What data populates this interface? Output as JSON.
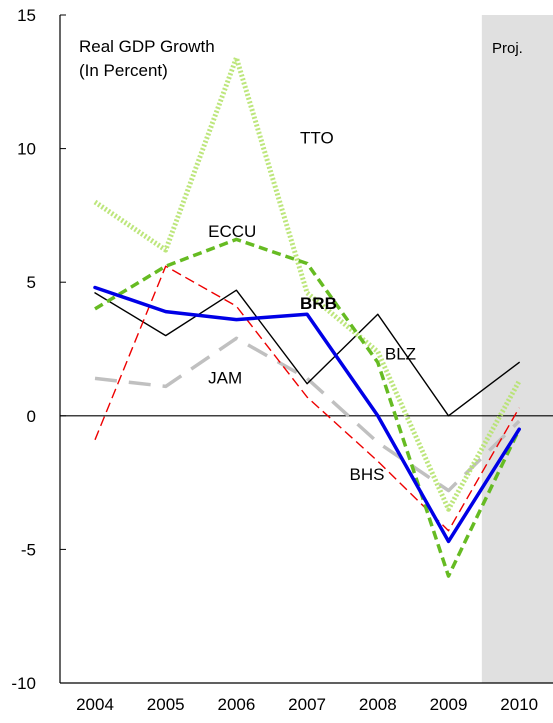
{
  "chart_data": {
    "type": "line",
    "title": "Real GDP Growth",
    "subtitle": "(In Percent)",
    "projection_label": "Proj.",
    "categories": [
      "2004",
      "2005",
      "2006",
      "2007",
      "2008",
      "2009",
      "2010"
    ],
    "ylim": [
      -10,
      15
    ],
    "yticks": [
      "-10",
      "-5",
      "0",
      "5",
      "10",
      "15"
    ],
    "projection_start_index": 5.5,
    "grid": false,
    "series": [
      {
        "name": "TTO",
        "values": [
          8.0,
          6.2,
          13.4,
          4.6,
          2.4,
          -3.5,
          1.3
        ],
        "color": "#b6e36e",
        "style": "dotted-thick"
      },
      {
        "name": "ECCU",
        "values": [
          4.0,
          5.6,
          6.6,
          5.7,
          2.0,
          -6.0,
          -0.5
        ],
        "color": "#66bb22",
        "style": "dashed-thick"
      },
      {
        "name": "BRB",
        "values": [
          4.8,
          3.9,
          3.6,
          3.8,
          0.0,
          -4.7,
          -0.5
        ],
        "color": "#0000e6",
        "style": "solid-thick"
      },
      {
        "name": "BLZ",
        "values": [
          4.6,
          3.0,
          4.7,
          1.2,
          3.8,
          0.0,
          2.0
        ],
        "color": "#000000",
        "style": "solid-thin"
      },
      {
        "name": "JAM",
        "values": [
          1.4,
          1.1,
          2.9,
          1.4,
          -1.0,
          -2.8,
          -0.2
        ],
        "color": "#c0c0c0",
        "style": "long-dash"
      },
      {
        "name": "BHS",
        "values": [
          -0.9,
          5.6,
          4.1,
          0.7,
          -1.7,
          -4.3,
          0.3
        ],
        "color": "#ee0000",
        "style": "dashed-thin"
      }
    ],
    "labels": [
      {
        "series": "TTO",
        "text": "TTO",
        "x": 2006.9,
        "y": 10.2,
        "bold": false
      },
      {
        "series": "ECCU",
        "text": "ECCU",
        "x": 2005.6,
        "y": 6.7,
        "bold": false
      },
      {
        "series": "BRB",
        "text": "BRB",
        "x": 2006.9,
        "y": 4.0,
        "bold": true
      },
      {
        "series": "BLZ",
        "text": "BLZ",
        "x": 2008.1,
        "y": 2.1,
        "bold": false
      },
      {
        "series": "JAM",
        "text": "JAM",
        "x": 2005.6,
        "y": 1.2,
        "bold": false
      },
      {
        "series": "BHS",
        "text": "BHS",
        "x": 2007.6,
        "y": -2.4,
        "bold": false
      }
    ]
  }
}
